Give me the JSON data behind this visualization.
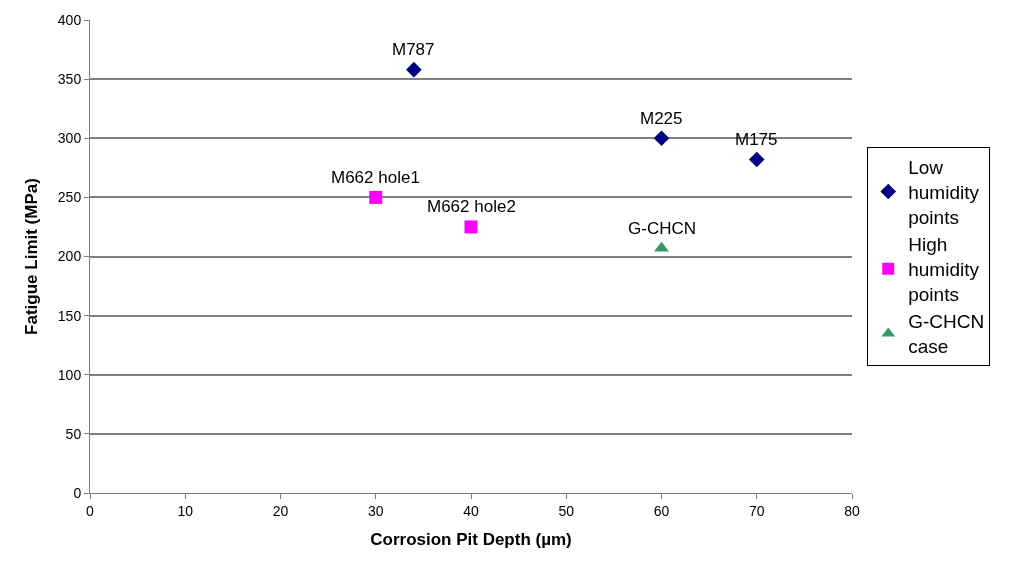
{
  "chart_data": {
    "type": "scatter",
    "xlabel": "Corrosion Pit Depth (µm)",
    "ylabel": "Fatigue Limit (MPa)",
    "xlim": [
      0,
      80
    ],
    "xticks": [
      0,
      10,
      20,
      30,
      40,
      50,
      60,
      70,
      80
    ],
    "ylim": [
      0,
      400
    ],
    "yticks": [
      0,
      50,
      100,
      150,
      200,
      250,
      300,
      350,
      400
    ],
    "grid": "y",
    "legend": "right",
    "series": [
      {
        "name": "Low humidity points",
        "color": "#000080",
        "marker": "diamond",
        "x": [
          34,
          60,
          70
        ],
        "values": [
          358,
          300,
          282
        ]
      },
      {
        "name": "High humidity points",
        "color": "#ff00ff",
        "marker": "square",
        "x": [
          30,
          40
        ],
        "values": [
          250,
          225
        ]
      },
      {
        "name": "G-CHCN case",
        "color": "#339966",
        "marker": "triangle",
        "x": [
          60
        ],
        "values": [
          207
        ]
      }
    ],
    "annotations": [
      {
        "text": "M787",
        "x": 34,
        "y": 358
      },
      {
        "text": "M225",
        "x": 60,
        "y": 300
      },
      {
        "text": "M175",
        "x": 70,
        "y": 282
      },
      {
        "text": "M662 hole1",
        "x": 30,
        "y": 250
      },
      {
        "text": "M662 hole2",
        "x": 40,
        "y": 225
      },
      {
        "text": "G-CHCN",
        "x": 60,
        "y": 207
      }
    ]
  }
}
